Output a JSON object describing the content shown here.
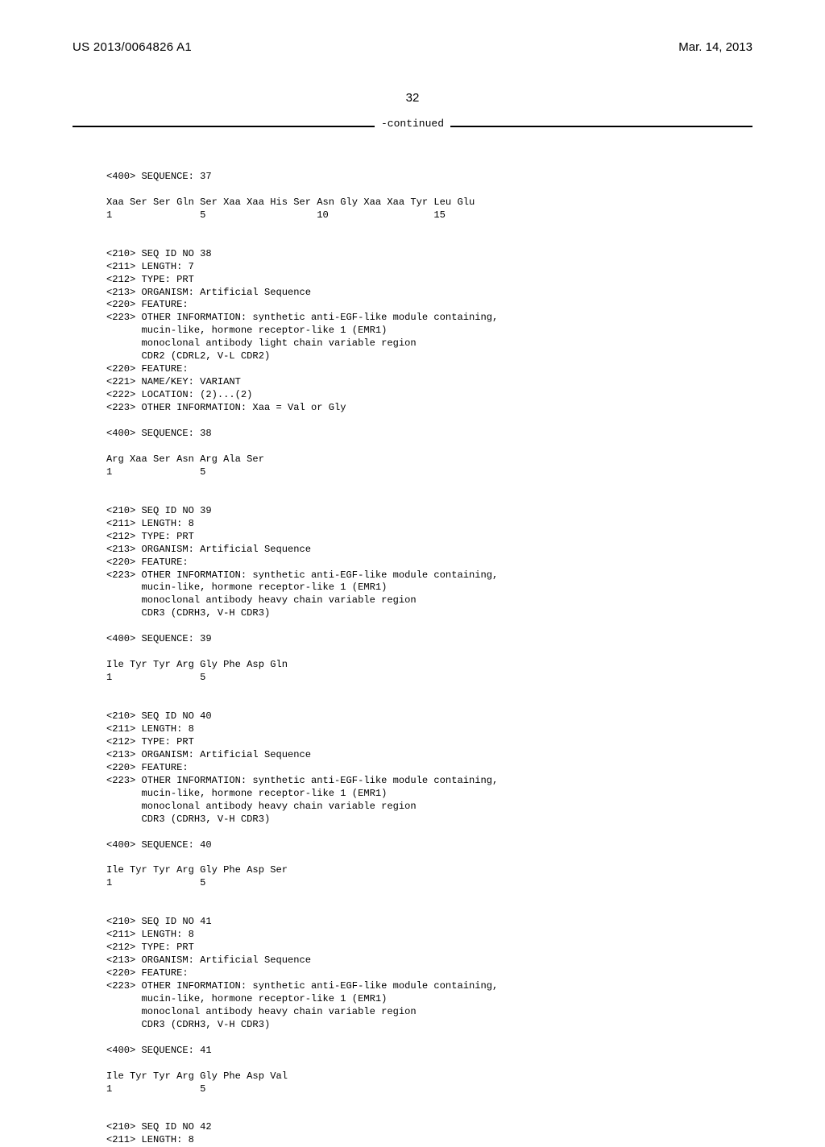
{
  "header": {
    "publication_number": "US 2013/0064826 A1",
    "date": "Mar. 14, 2013"
  },
  "page_number": "32",
  "continued_label": "-continued",
  "sequences": [
    {
      "pre_lines": [
        "",
        "<400> SEQUENCE: 37",
        ""
      ],
      "seq_line": "Xaa Ser Ser Gln Ser Xaa Xaa His Ser Asn Gly Xaa Xaa Tyr Leu Glu",
      "num_line": "1               5                   10                  15"
    },
    {
      "pre_lines": [
        "",
        "",
        "<210> SEQ ID NO 38",
        "<211> LENGTH: 7",
        "<212> TYPE: PRT",
        "<213> ORGANISM: Artificial Sequence",
        "<220> FEATURE:",
        "<223> OTHER INFORMATION: synthetic anti-EGF-like module containing,",
        "      mucin-like, hormone receptor-like 1 (EMR1)",
        "      monoclonal antibody light chain variable region",
        "      CDR2 (CDRL2, V-L CDR2)",
        "<220> FEATURE:",
        "<221> NAME/KEY: VARIANT",
        "<222> LOCATION: (2)...(2)",
        "<223> OTHER INFORMATION: Xaa = Val or Gly",
        "",
        "<400> SEQUENCE: 38",
        ""
      ],
      "seq_line": "Arg Xaa Ser Asn Arg Ala Ser",
      "num_line": "1               5"
    },
    {
      "pre_lines": [
        "",
        "",
        "<210> SEQ ID NO 39",
        "<211> LENGTH: 8",
        "<212> TYPE: PRT",
        "<213> ORGANISM: Artificial Sequence",
        "<220> FEATURE:",
        "<223> OTHER INFORMATION: synthetic anti-EGF-like module containing,",
        "      mucin-like, hormone receptor-like 1 (EMR1)",
        "      monoclonal antibody heavy chain variable region",
        "      CDR3 (CDRH3, V-H CDR3)",
        "",
        "<400> SEQUENCE: 39",
        ""
      ],
      "seq_line": "Ile Tyr Tyr Arg Gly Phe Asp Gln",
      "num_line": "1               5"
    },
    {
      "pre_lines": [
        "",
        "",
        "<210> SEQ ID NO 40",
        "<211> LENGTH: 8",
        "<212> TYPE: PRT",
        "<213> ORGANISM: Artificial Sequence",
        "<220> FEATURE:",
        "<223> OTHER INFORMATION: synthetic anti-EGF-like module containing,",
        "      mucin-like, hormone receptor-like 1 (EMR1)",
        "      monoclonal antibody heavy chain variable region",
        "      CDR3 (CDRH3, V-H CDR3)",
        "",
        "<400> SEQUENCE: 40",
        ""
      ],
      "seq_line": "Ile Tyr Tyr Arg Gly Phe Asp Ser",
      "num_line": "1               5"
    },
    {
      "pre_lines": [
        "",
        "",
        "<210> SEQ ID NO 41",
        "<211> LENGTH: 8",
        "<212> TYPE: PRT",
        "<213> ORGANISM: Artificial Sequence",
        "<220> FEATURE:",
        "<223> OTHER INFORMATION: synthetic anti-EGF-like module containing,",
        "      mucin-like, hormone receptor-like 1 (EMR1)",
        "      monoclonal antibody heavy chain variable region",
        "      CDR3 (CDRH3, V-H CDR3)",
        "",
        "<400> SEQUENCE: 41",
        ""
      ],
      "seq_line": "Ile Tyr Tyr Arg Gly Phe Asp Val",
      "num_line": "1               5"
    },
    {
      "pre_lines": [
        "",
        "",
        "<210> SEQ ID NO 42",
        "<211> LENGTH: 8"
      ],
      "seq_line": "",
      "num_line": ""
    }
  ]
}
